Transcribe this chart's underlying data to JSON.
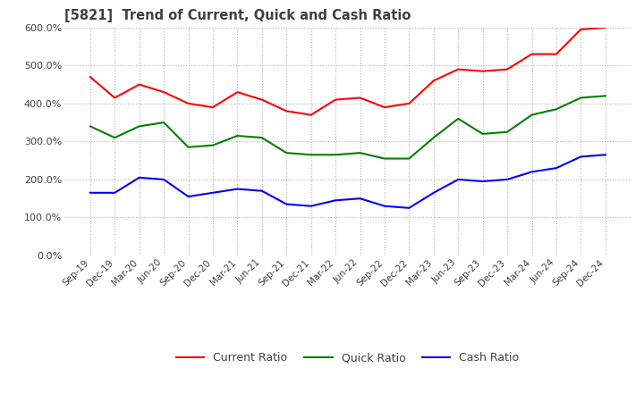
{
  "title": "[5821]  Trend of Current, Quick and Cash Ratio",
  "x_labels": [
    "Sep-19",
    "Dec-19",
    "Mar-20",
    "Jun-20",
    "Sep-20",
    "Dec-20",
    "Mar-21",
    "Jun-21",
    "Sep-21",
    "Dec-21",
    "Mar-22",
    "Jun-22",
    "Sep-22",
    "Dec-22",
    "Mar-23",
    "Jun-23",
    "Sep-23",
    "Dec-23",
    "Mar-24",
    "Jun-24",
    "Sep-24",
    "Dec-24"
  ],
  "current_ratio": [
    470,
    415,
    450,
    430,
    400,
    390,
    430,
    410,
    380,
    370,
    410,
    415,
    390,
    400,
    460,
    490,
    485,
    490,
    530,
    530,
    595,
    600
  ],
  "quick_ratio": [
    340,
    310,
    340,
    350,
    285,
    290,
    315,
    310,
    270,
    265,
    265,
    270,
    255,
    255,
    310,
    360,
    320,
    325,
    370,
    385,
    415,
    420
  ],
  "cash_ratio": [
    165,
    165,
    205,
    200,
    155,
    165,
    175,
    170,
    135,
    130,
    145,
    150,
    130,
    125,
    165,
    200,
    195,
    200,
    220,
    230,
    260,
    265
  ],
  "ylim": [
    0,
    600
  ],
  "yticks": [
    0,
    100,
    200,
    300,
    400,
    500,
    600
  ],
  "current_color": "#ff0000",
  "quick_color": "#008000",
  "cash_color": "#0000ff",
  "bg_color": "#ffffff",
  "grid_color": "#b0b0b0",
  "title_color": "#404040",
  "tick_color": "#404040"
}
